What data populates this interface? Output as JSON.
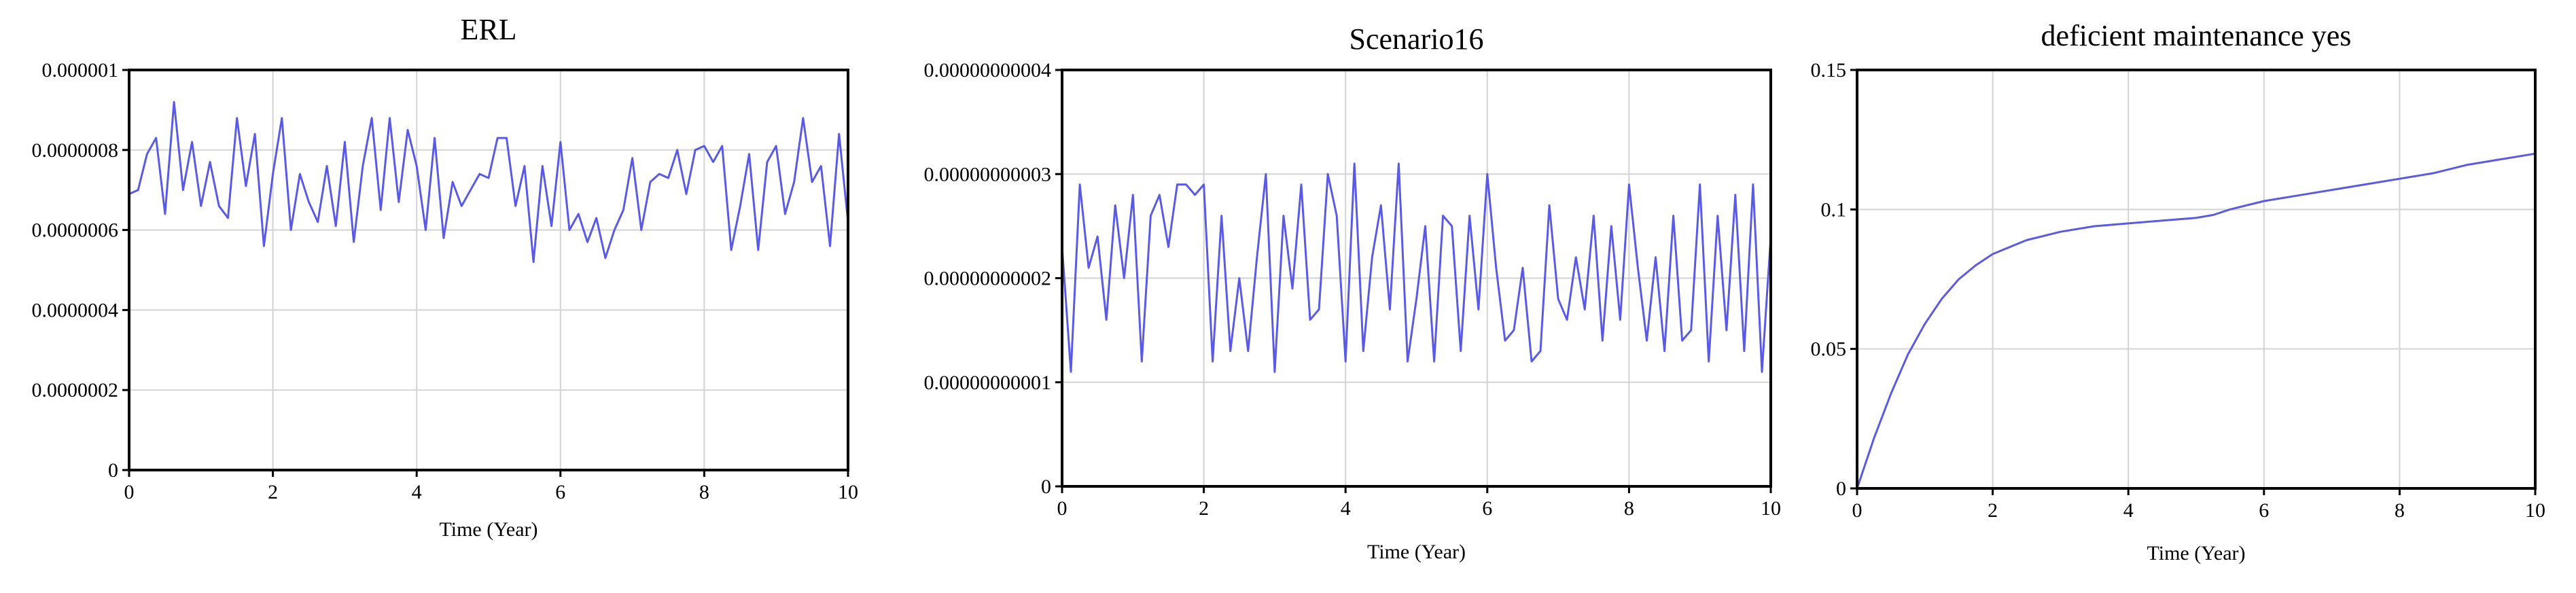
{
  "chart_data": [
    {
      "type": "line",
      "title": "ERL",
      "xlabel": "Time (Year)",
      "ylabel": "",
      "xlim": [
        0,
        10
      ],
      "ylim": [
        0,
        1e-06
      ],
      "grid": true,
      "x_ticks": [
        0,
        2,
        4,
        6,
        8,
        10
      ],
      "x_tick_labels": [
        "0",
        "2",
        "4",
        "6",
        "8",
        "10"
      ],
      "y_ticks": [
        0,
        2e-07,
        4e-07,
        6e-07,
        8e-07,
        1e-06
      ],
      "y_tick_labels": [
        "0",
        "0.0000002",
        "0.0000004",
        "0.0000006",
        "0.0000008",
        "0.000001"
      ],
      "series": [
        {
          "color": "#5a5ae6",
          "x": [
            0,
            0.125,
            0.25,
            0.375,
            0.5,
            0.625,
            0.75,
            0.875,
            1,
            1.125,
            1.25,
            1.375,
            1.5,
            1.625,
            1.75,
            1.875,
            2,
            2.125,
            2.25,
            2.375,
            2.5,
            2.625,
            2.75,
            2.875,
            3,
            3.125,
            3.25,
            3.375,
            3.5,
            3.625,
            3.75,
            3.875,
            4,
            4.125,
            4.25,
            4.375,
            4.5,
            4.625,
            4.75,
            4.875,
            5,
            5.125,
            5.25,
            5.375,
            5.5,
            5.625,
            5.75,
            5.875,
            6,
            6.125,
            6.25,
            6.375,
            6.5,
            6.625,
            6.75,
            6.875,
            7,
            7.125,
            7.25,
            7.375,
            7.5,
            7.625,
            7.75,
            7.875,
            8,
            8.125,
            8.25,
            8.375,
            8.5,
            8.625,
            8.75,
            8.875,
            9,
            9.125,
            9.25,
            9.375,
            9.5,
            9.625,
            9.75,
            9.875,
            10
          ],
          "y": [
            6.9e-07,
            7e-07,
            7.9e-07,
            8.3e-07,
            6.4e-07,
            9.2e-07,
            7e-07,
            8.2e-07,
            6.6e-07,
            7.7e-07,
            6.6e-07,
            6.3e-07,
            8.8e-07,
            7.1e-07,
            8.4e-07,
            5.6e-07,
            7.4e-07,
            8.8e-07,
            6e-07,
            7.4e-07,
            6.7e-07,
            6.2e-07,
            7.6e-07,
            6.1e-07,
            8.2e-07,
            5.7e-07,
            7.6e-07,
            8.8e-07,
            6.5e-07,
            8.8e-07,
            6.7e-07,
            8.5e-07,
            7.6e-07,
            6e-07,
            8.3e-07,
            5.8e-07,
            7.2e-07,
            6.6e-07,
            7e-07,
            7.4e-07,
            7.3e-07,
            8.3e-07,
            8.3e-07,
            6.6e-07,
            7.6e-07,
            5.2e-07,
            7.6e-07,
            6.1e-07,
            8.2e-07,
            6e-07,
            6.4e-07,
            5.7e-07,
            6.3e-07,
            5.3e-07,
            6e-07,
            6.5e-07,
            7.8e-07,
            6e-07,
            7.2e-07,
            7.4e-07,
            7.3e-07,
            8e-07,
            6.9e-07,
            8e-07,
            8.1e-07,
            7.7e-07,
            8.1e-07,
            5.5e-07,
            6.6e-07,
            7.9e-07,
            5.5e-07,
            7.7e-07,
            8.1e-07,
            6.4e-07,
            7.2e-07,
            8.8e-07,
            7.2e-07,
            7.6e-07,
            5.6e-07,
            8.4e-07,
            6.2e-07
          ]
        }
      ]
    },
    {
      "type": "line",
      "title": "Scenario16",
      "xlabel": "Time (Year)",
      "ylabel": "",
      "xlim": [
        0,
        10
      ],
      "ylim": [
        0,
        4e-11
      ],
      "grid": true,
      "x_ticks": [
        0,
        2,
        4,
        6,
        8,
        10
      ],
      "x_tick_labels": [
        "0",
        "2",
        "4",
        "6",
        "8",
        "10"
      ],
      "y_ticks": [
        0,
        1e-11,
        2e-11,
        3e-11,
        4e-11
      ],
      "y_tick_labels": [
        "0",
        "0.00000000001",
        "0.00000000002",
        "0.00000000003",
        "0.00000000004"
      ],
      "series": [
        {
          "color": "#5a5ae6",
          "x": [
            0,
            0.125,
            0.25,
            0.375,
            0.5,
            0.625,
            0.75,
            0.875,
            1,
            1.125,
            1.25,
            1.375,
            1.5,
            1.625,
            1.75,
            1.875,
            2,
            2.125,
            2.25,
            2.375,
            2.5,
            2.625,
            2.75,
            2.875,
            3,
            3.125,
            3.25,
            3.375,
            3.5,
            3.625,
            3.75,
            3.875,
            4,
            4.125,
            4.25,
            4.375,
            4.5,
            4.625,
            4.75,
            4.875,
            5,
            5.125,
            5.25,
            5.375,
            5.5,
            5.625,
            5.75,
            5.875,
            6,
            6.125,
            6.25,
            6.375,
            6.5,
            6.625,
            6.75,
            6.875,
            7,
            7.125,
            7.25,
            7.375,
            7.5,
            7.625,
            7.75,
            7.875,
            8,
            8.125,
            8.25,
            8.375,
            8.5,
            8.625,
            8.75,
            8.875,
            9,
            9.125,
            9.25,
            9.375,
            9.5,
            9.625,
            9.75,
            9.875,
            10
          ],
          "y": [
            2.3e-11,
            1.1e-11,
            2.9e-11,
            2.1e-11,
            2.4e-11,
            1.6e-11,
            2.7e-11,
            2e-11,
            2.8e-11,
            1.2e-11,
            2.6e-11,
            2.8e-11,
            2.3e-11,
            2.9e-11,
            2.9e-11,
            2.8e-11,
            2.9e-11,
            1.2e-11,
            2.6e-11,
            1.3e-11,
            2e-11,
            1.3e-11,
            2.2e-11,
            3e-11,
            1.1e-11,
            2.6e-11,
            1.9e-11,
            2.9e-11,
            1.6e-11,
            1.7e-11,
            3e-11,
            2.6e-11,
            1.2e-11,
            3.1e-11,
            1.3e-11,
            2.2e-11,
            2.7e-11,
            1.7e-11,
            3.1e-11,
            1.2e-11,
            1.8e-11,
            2.5e-11,
            1.2e-11,
            2.6e-11,
            2.5e-11,
            1.3e-11,
            2.6e-11,
            1.7e-11,
            3e-11,
            2.1e-11,
            1.4e-11,
            1.5e-11,
            2.1e-11,
            1.2e-11,
            1.3e-11,
            2.7e-11,
            1.8e-11,
            1.6e-11,
            2.2e-11,
            1.7e-11,
            2.6e-11,
            1.4e-11,
            2.5e-11,
            1.6e-11,
            2.9e-11,
            2.1e-11,
            1.4e-11,
            2.2e-11,
            1.3e-11,
            2.6e-11,
            1.4e-11,
            1.5e-11,
            2.9e-11,
            1.2e-11,
            2.6e-11,
            1.5e-11,
            2.8e-11,
            1.3e-11,
            2.9e-11,
            1.1e-11,
            2.4e-11
          ]
        }
      ]
    },
    {
      "type": "line",
      "title": "deficient maintenance yes",
      "xlabel": "Time (Year)",
      "ylabel": "",
      "xlim": [
        0,
        10
      ],
      "ylim": [
        0,
        0.15
      ],
      "grid": true,
      "x_ticks": [
        0,
        2,
        4,
        6,
        8,
        10
      ],
      "x_tick_labels": [
        "0",
        "2",
        "4",
        "6",
        "8",
        "10"
      ],
      "y_ticks": [
        0,
        0.05,
        0.1,
        0.15
      ],
      "y_tick_labels": [
        "0",
        "0.05",
        "0.1",
        "0.15"
      ],
      "series": [
        {
          "color": "#5a5ae6",
          "x": [
            0,
            0.25,
            0.5,
            0.75,
            1,
            1.25,
            1.5,
            1.75,
            2,
            2.5,
            3,
            3.5,
            4,
            4.5,
            5,
            5.25,
            5.5,
            6,
            6.5,
            7,
            7.5,
            8,
            8.5,
            9,
            9.5,
            10
          ],
          "y": [
            0,
            0.018,
            0.034,
            0.048,
            0.059,
            0.068,
            0.075,
            0.08,
            0.084,
            0.089,
            0.092,
            0.094,
            0.095,
            0.096,
            0.097,
            0.098,
            0.1,
            0.103,
            0.105,
            0.107,
            0.109,
            0.111,
            0.113,
            0.116,
            0.118,
            0.12
          ]
        }
      ]
    }
  ]
}
